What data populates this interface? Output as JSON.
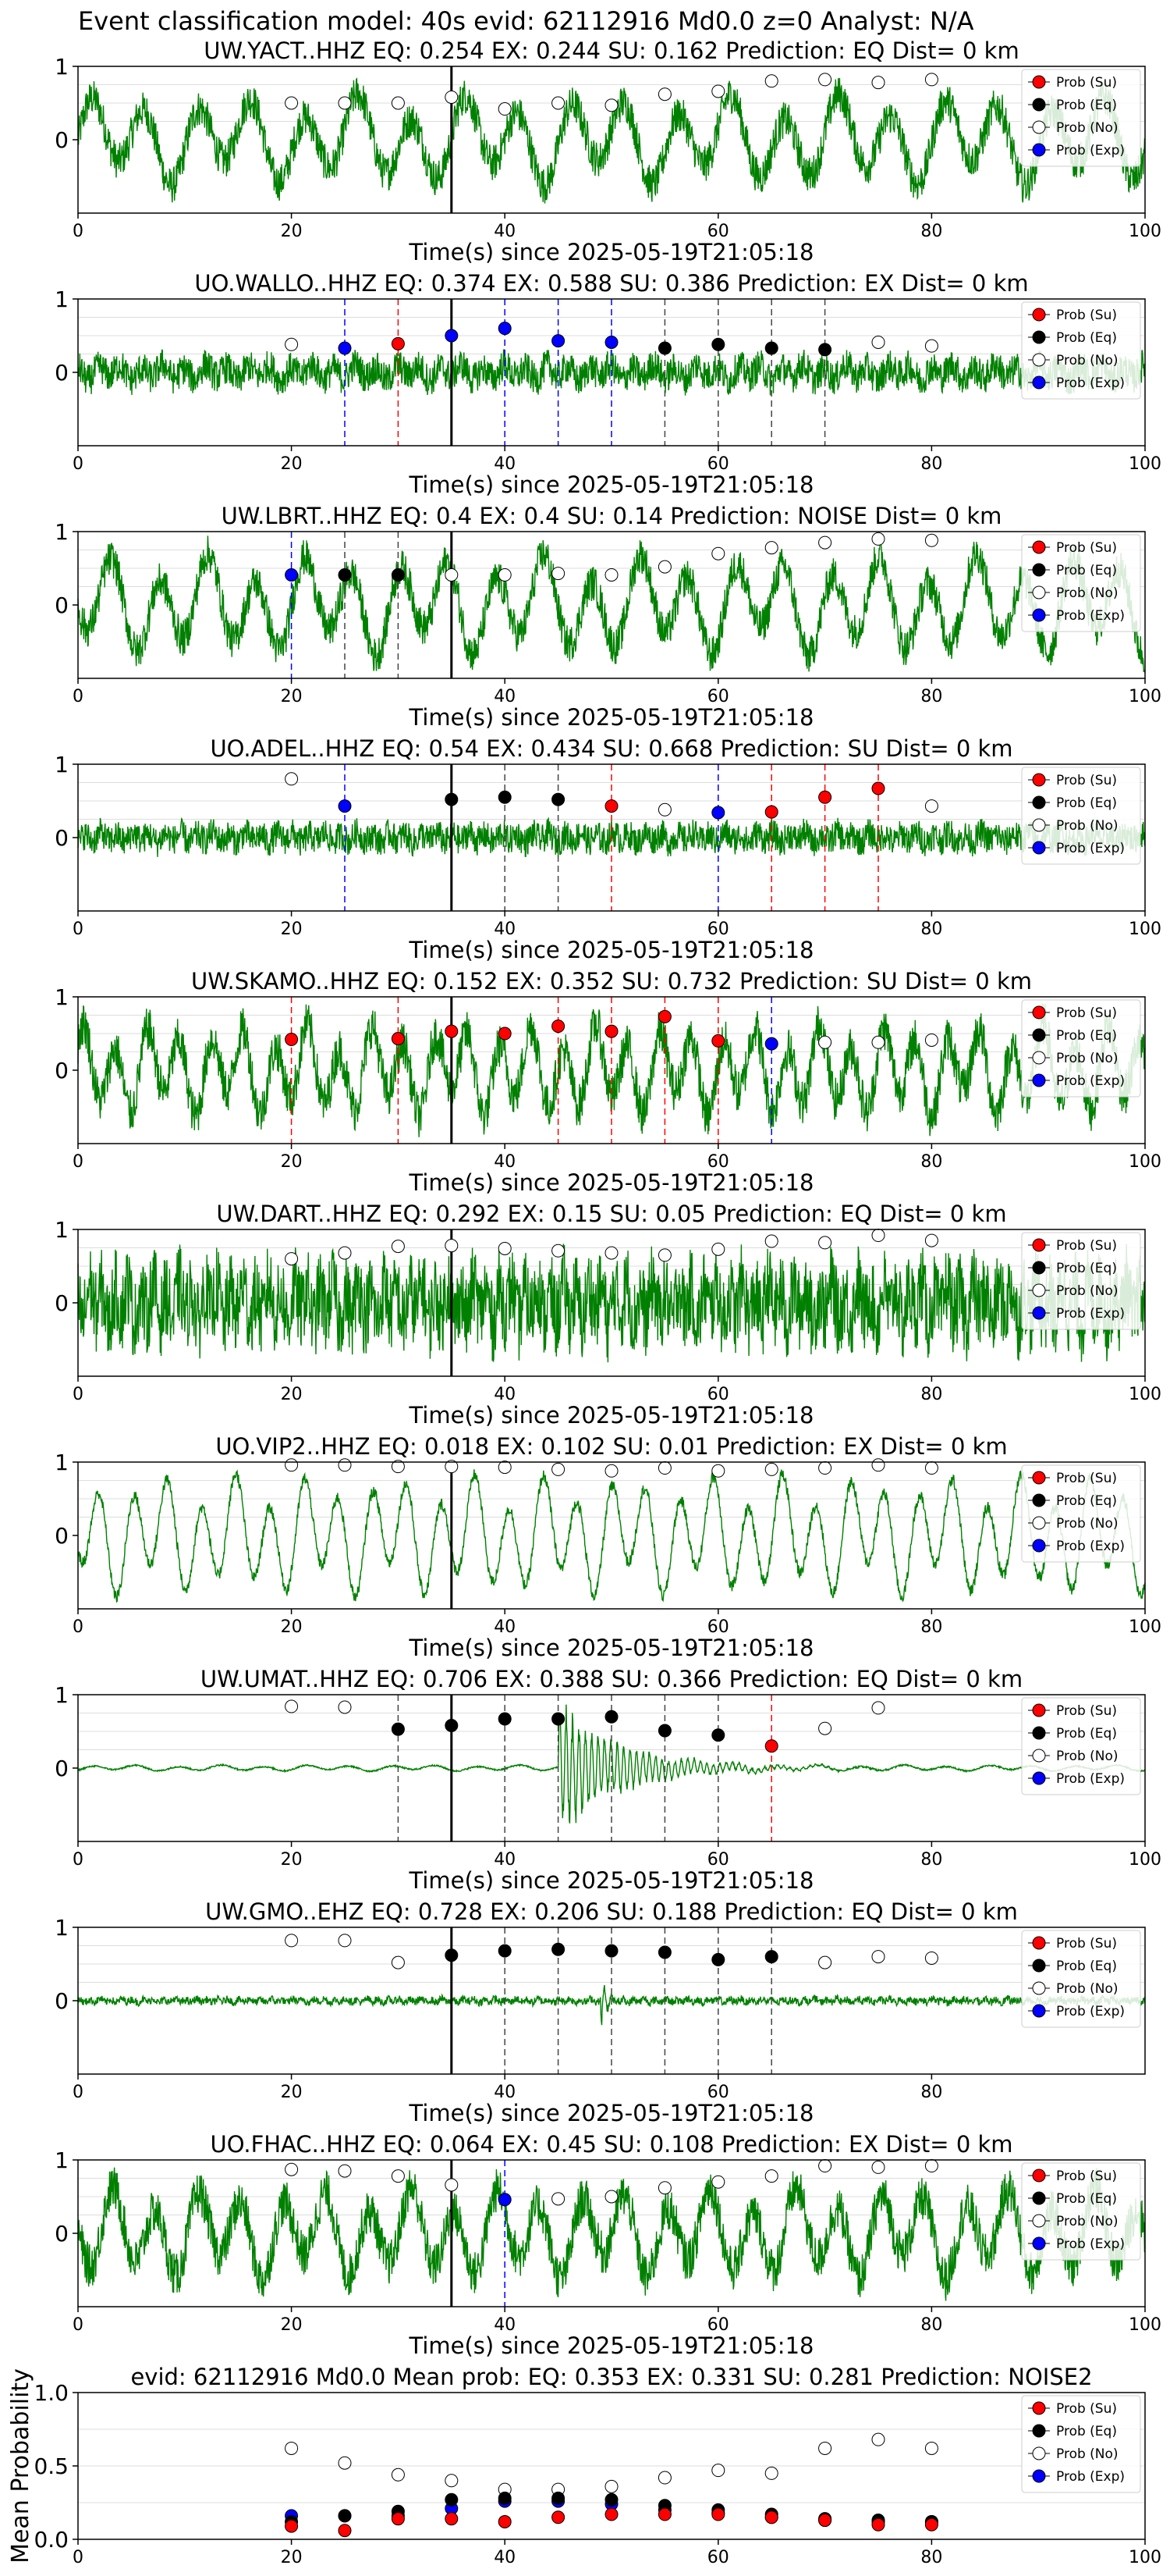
{
  "suptitle": "Event classification model: 40s evid: 62112916 Md0.0 z=0 Analyst: N/A",
  "xlabel": "Time(s) since 2025-05-19T21:05:18",
  "legend": [
    "Prob (Su)",
    "Prob (Eq)",
    "Prob (No)",
    "Prob (Exp)"
  ],
  "colors": {
    "su": "#ff0000",
    "eq": "#000000",
    "no": "#ffffff",
    "exp": "#0000ff",
    "trace": "#008000"
  },
  "chart_data": [
    {
      "type": "line",
      "title": "UW.YACT..HHZ   EQ: 0.254  EX: 0.244  SU: 0.162   Prediction: EQ    Dist= 0 km",
      "xlim": [
        0,
        100
      ],
      "ylim": [
        -1,
        1
      ],
      "yticks": [
        "1",
        "0"
      ],
      "xticks": [
        "0",
        "20",
        "40",
        "60",
        "80",
        "100"
      ],
      "wave": {
        "amp": 0.45,
        "noise": 0.25,
        "period": 5,
        "event": null
      },
      "markers": [
        [
          20,
          0.5,
          "no"
        ],
        [
          25,
          0.5,
          "no"
        ],
        [
          30,
          0.5,
          "no"
        ],
        [
          35,
          0.58,
          "no"
        ],
        [
          40,
          0.42,
          "no"
        ],
        [
          45,
          0.5,
          "no"
        ],
        [
          50,
          0.47,
          "no"
        ],
        [
          55,
          0.62,
          "no"
        ],
        [
          60,
          0.66,
          "no"
        ],
        [
          65,
          0.8,
          "no"
        ],
        [
          70,
          0.82,
          "no"
        ],
        [
          75,
          0.78,
          "no"
        ],
        [
          80,
          0.82,
          "no"
        ]
      ],
      "vlines": []
    },
    {
      "type": "line",
      "title": "UO.WALLO..HHZ   EQ: 0.374  EX: 0.588  SU: 0.386   Prediction: EX    Dist= 0 km",
      "xlim": [
        0,
        100
      ],
      "ylim": [
        -1,
        1
      ],
      "yticks": [
        "1",
        "0"
      ],
      "xticks": [
        "0",
        "20",
        "40",
        "60",
        "80",
        "100"
      ],
      "wave": {
        "amp": 0.08,
        "noise": 0.22,
        "period": 2,
        "event": null
      },
      "markers": [
        [
          20,
          0.38,
          "no"
        ],
        [
          25,
          0.33,
          "exp"
        ],
        [
          30,
          0.39,
          "su"
        ],
        [
          35,
          0.5,
          "exp"
        ],
        [
          40,
          0.6,
          "exp"
        ],
        [
          45,
          0.43,
          "exp"
        ],
        [
          50,
          0.41,
          "exp"
        ],
        [
          55,
          0.33,
          "eq"
        ],
        [
          60,
          0.38,
          "eq"
        ],
        [
          65,
          0.33,
          "eq"
        ],
        [
          70,
          0.31,
          "eq"
        ],
        [
          75,
          0.41,
          "no"
        ],
        [
          80,
          0.36,
          "no"
        ]
      ],
      "vlines": [
        [
          25,
          "exp"
        ],
        [
          30,
          "su"
        ],
        [
          40,
          "exp"
        ],
        [
          45,
          "exp"
        ],
        [
          50,
          "exp"
        ],
        [
          55,
          "eq"
        ],
        [
          60,
          "eq"
        ],
        [
          65,
          "eq"
        ],
        [
          70,
          "eq"
        ]
      ]
    },
    {
      "type": "line",
      "title": "UW.LBRT..HHZ   EQ: 0.4  EX: 0.4  SU: 0.14   Prediction: NOISE    Dist= 0 km",
      "xlim": [
        0,
        100
      ],
      "ylim": [
        -1,
        1
      ],
      "yticks": [
        "1",
        "0"
      ],
      "xticks": [
        "0",
        "20",
        "40",
        "60",
        "80",
        "100"
      ],
      "wave": {
        "amp": 0.5,
        "noise": 0.25,
        "period": 4.5,
        "event": null
      },
      "markers": [
        [
          20,
          0.41,
          "exp"
        ],
        [
          25,
          0.41,
          "eq"
        ],
        [
          30,
          0.41,
          "eq"
        ],
        [
          35,
          0.41,
          "no"
        ],
        [
          40,
          0.41,
          "no"
        ],
        [
          45,
          0.43,
          "no"
        ],
        [
          50,
          0.41,
          "no"
        ],
        [
          55,
          0.52,
          "no"
        ],
        [
          60,
          0.7,
          "no"
        ],
        [
          65,
          0.78,
          "no"
        ],
        [
          70,
          0.85,
          "no"
        ],
        [
          75,
          0.9,
          "no"
        ],
        [
          80,
          0.88,
          "no"
        ]
      ],
      "vlines": [
        [
          20,
          "exp"
        ],
        [
          25,
          "eq"
        ],
        [
          30,
          "eq"
        ]
      ]
    },
    {
      "type": "line",
      "title": "UO.ADEL..HHZ   EQ: 0.54  EX: 0.434  SU: 0.668   Prediction: SU    Dist= 0 km",
      "xlim": [
        0,
        100
      ],
      "ylim": [
        -1,
        1
      ],
      "yticks": [
        "1",
        "0"
      ],
      "xticks": [
        "0",
        "20",
        "40",
        "60",
        "80",
        "100"
      ],
      "wave": {
        "amp": 0.05,
        "noise": 0.2,
        "period": 1.5,
        "event": null
      },
      "markers": [
        [
          20,
          0.8,
          "no"
        ],
        [
          25,
          0.43,
          "exp"
        ],
        [
          35,
          0.52,
          "eq"
        ],
        [
          40,
          0.55,
          "eq"
        ],
        [
          45,
          0.52,
          "eq"
        ],
        [
          50,
          0.43,
          "su"
        ],
        [
          55,
          0.38,
          "no"
        ],
        [
          60,
          0.34,
          "exp"
        ],
        [
          65,
          0.35,
          "su"
        ],
        [
          70,
          0.55,
          "su"
        ],
        [
          75,
          0.67,
          "su"
        ],
        [
          80,
          0.43,
          "no"
        ]
      ],
      "vlines": [
        [
          25,
          "exp"
        ],
        [
          40,
          "eq"
        ],
        [
          45,
          "eq"
        ],
        [
          50,
          "su"
        ],
        [
          60,
          "exp"
        ],
        [
          65,
          "su"
        ],
        [
          70,
          "su"
        ],
        [
          75,
          "su"
        ]
      ]
    },
    {
      "type": "line",
      "title": "UW.SKAMO..HHZ   EQ: 0.152  EX: 0.352  SU: 0.732   Prediction: SU    Dist= 0 km",
      "xlim": [
        0,
        100
      ],
      "ylim": [
        -1,
        1
      ],
      "yticks": [
        "1",
        "0"
      ],
      "xticks": [
        "0",
        "20",
        "40",
        "60",
        "80",
        "100"
      ],
      "wave": {
        "amp": 0.45,
        "noise": 0.3,
        "period": 3,
        "event": null
      },
      "markers": [
        [
          20,
          0.42,
          "su"
        ],
        [
          30,
          0.43,
          "su"
        ],
        [
          35,
          0.53,
          "su"
        ],
        [
          40,
          0.5,
          "su"
        ],
        [
          45,
          0.6,
          "su"
        ],
        [
          50,
          0.53,
          "su"
        ],
        [
          55,
          0.73,
          "su"
        ],
        [
          60,
          0.4,
          "su"
        ],
        [
          65,
          0.36,
          "exp"
        ],
        [
          70,
          0.38,
          "no"
        ],
        [
          75,
          0.38,
          "no"
        ],
        [
          80,
          0.41,
          "no"
        ]
      ],
      "vlines": [
        [
          20,
          "su"
        ],
        [
          30,
          "su"
        ],
        [
          45,
          "su"
        ],
        [
          50,
          "su"
        ],
        [
          55,
          "su"
        ],
        [
          60,
          "su"
        ],
        [
          65,
          "exp"
        ]
      ]
    },
    {
      "type": "line",
      "title": "UW.DART..HHZ   EQ: 0.292  EX: 0.15  SU: 0.05   Prediction: EQ    Dist= 0 km",
      "xlim": [
        0,
        100
      ],
      "ylim": [
        -1,
        1
      ],
      "yticks": [
        "1",
        "0"
      ],
      "xticks": [
        "0",
        "20",
        "40",
        "60",
        "80",
        "100"
      ],
      "wave": {
        "amp": 0.2,
        "noise": 0.55,
        "period": 1.2,
        "event": null
      },
      "markers": [
        [
          20,
          0.6,
          "no"
        ],
        [
          25,
          0.68,
          "no"
        ],
        [
          30,
          0.77,
          "no"
        ],
        [
          35,
          0.78,
          "no"
        ],
        [
          40,
          0.74,
          "no"
        ],
        [
          45,
          0.71,
          "no"
        ],
        [
          50,
          0.68,
          "no"
        ],
        [
          55,
          0.65,
          "no"
        ],
        [
          60,
          0.73,
          "no"
        ],
        [
          65,
          0.84,
          "no"
        ],
        [
          70,
          0.82,
          "no"
        ],
        [
          75,
          0.92,
          "no"
        ],
        [
          80,
          0.85,
          "no"
        ]
      ],
      "vlines": []
    },
    {
      "type": "line",
      "title": "UO.VIP2..HHZ   EQ: 0.018  EX: 0.102  SU: 0.01   Prediction: EX    Dist= 0 km",
      "xlim": [
        0,
        100
      ],
      "ylim": [
        -1,
        1
      ],
      "yticks": [
        "1",
        "0"
      ],
      "xticks": [
        "0",
        "20",
        "40",
        "60",
        "80",
        "100"
      ],
      "wave": {
        "amp": 0.6,
        "noise": 0.08,
        "period": 3.2,
        "event": null
      },
      "markers": [
        [
          20,
          0.96,
          "no"
        ],
        [
          25,
          0.96,
          "no"
        ],
        [
          30,
          0.94,
          "no"
        ],
        [
          35,
          0.94,
          "no"
        ],
        [
          40,
          0.93,
          "no"
        ],
        [
          45,
          0.9,
          "no"
        ],
        [
          50,
          0.88,
          "no"
        ],
        [
          55,
          0.92,
          "no"
        ],
        [
          60,
          0.88,
          "no"
        ],
        [
          65,
          0.9,
          "no"
        ],
        [
          70,
          0.92,
          "no"
        ],
        [
          75,
          0.96,
          "no"
        ],
        [
          80,
          0.92,
          "no"
        ]
      ],
      "vlines": []
    },
    {
      "type": "line",
      "title": "UW.UMAT..HHZ   EQ: 0.706  EX: 0.388  SU: 0.366   Prediction: EQ    Dist= 0 km",
      "xlim": [
        0,
        100
      ],
      "ylim": [
        -1,
        1
      ],
      "yticks": [
        "1",
        "0"
      ],
      "xticks": [
        "0",
        "20",
        "40",
        "60",
        "80",
        "100"
      ],
      "wave": {
        "amp": 0.03,
        "noise": 0.01,
        "period": 4,
        "event": [
          45,
          0.75,
          6
        ]
      },
      "markers": [
        [
          20,
          0.84,
          "no"
        ],
        [
          25,
          0.83,
          "no"
        ],
        [
          30,
          0.53,
          "eq"
        ],
        [
          35,
          0.58,
          "eq"
        ],
        [
          40,
          0.67,
          "eq"
        ],
        [
          45,
          0.67,
          "eq"
        ],
        [
          50,
          0.7,
          "eq"
        ],
        [
          55,
          0.51,
          "eq"
        ],
        [
          60,
          0.45,
          "eq"
        ],
        [
          65,
          0.3,
          "su"
        ],
        [
          70,
          0.54,
          "no"
        ],
        [
          75,
          0.82,
          "no"
        ]
      ],
      "vlines": [
        [
          30,
          "eq"
        ],
        [
          40,
          "eq"
        ],
        [
          45,
          "eq"
        ],
        [
          50,
          "eq"
        ],
        [
          55,
          "eq"
        ],
        [
          60,
          "eq"
        ],
        [
          65,
          "su"
        ]
      ]
    },
    {
      "type": "line",
      "title": "UW.GMO..EHZ   EQ: 0.728  EX: 0.206  SU: 0.188   Prediction: EQ    Dist= 0 km",
      "xlim": [
        0,
        100
      ],
      "ylim": [
        -1,
        1
      ],
      "yticks": [
        "1",
        "0"
      ],
      "xticks": [
        "0",
        "20",
        "40",
        "60",
        "80"
      ],
      "wave": {
        "amp": 0.02,
        "noise": 0.05,
        "period": 1,
        "event": [
          49,
          0.3,
          0.5
        ]
      },
      "markers": [
        [
          20,
          0.82,
          "no"
        ],
        [
          25,
          0.82,
          "no"
        ],
        [
          30,
          0.52,
          "no"
        ],
        [
          35,
          0.62,
          "eq"
        ],
        [
          40,
          0.68,
          "eq"
        ],
        [
          45,
          0.7,
          "eq"
        ],
        [
          50,
          0.68,
          "eq"
        ],
        [
          55,
          0.66,
          "eq"
        ],
        [
          60,
          0.56,
          "eq"
        ],
        [
          65,
          0.6,
          "eq"
        ],
        [
          70,
          0.52,
          "no"
        ],
        [
          75,
          0.6,
          "no"
        ],
        [
          80,
          0.58,
          "no"
        ]
      ],
      "vlines": [
        [
          40,
          "eq"
        ],
        [
          45,
          "eq"
        ],
        [
          50,
          "eq"
        ],
        [
          55,
          "eq"
        ],
        [
          60,
          "eq"
        ],
        [
          65,
          "eq"
        ]
      ]
    },
    {
      "type": "line",
      "title": "UO.FHAC..HHZ   EQ: 0.064  EX: 0.45  SU: 0.108   Prediction: EX    Dist= 0 km",
      "xlim": [
        0,
        100
      ],
      "ylim": [
        -1,
        1
      ],
      "yticks": [
        "1",
        "0"
      ],
      "xticks": [
        "0",
        "20",
        "40",
        "60",
        "80",
        "100"
      ],
      "wave": {
        "amp": 0.45,
        "noise": 0.3,
        "period": 4,
        "event": null
      },
      "markers": [
        [
          20,
          0.87,
          "no"
        ],
        [
          25,
          0.85,
          "no"
        ],
        [
          30,
          0.78,
          "no"
        ],
        [
          35,
          0.66,
          "no"
        ],
        [
          40,
          0.46,
          "exp"
        ],
        [
          45,
          0.47,
          "no"
        ],
        [
          50,
          0.5,
          "no"
        ],
        [
          55,
          0.62,
          "no"
        ],
        [
          60,
          0.7,
          "no"
        ],
        [
          65,
          0.78,
          "no"
        ],
        [
          70,
          0.92,
          "no"
        ],
        [
          75,
          0.9,
          "no"
        ],
        [
          80,
          0.92,
          "no"
        ]
      ],
      "vlines": [
        [
          40,
          "exp"
        ]
      ]
    },
    {
      "type": "scatter",
      "title": "evid: 62112916  Md0.0   Mean prob:   EQ: 0.353  EX: 0.331  SU: 0.281   Prediction: NOISE2",
      "ylabel": "Mean Probability",
      "xlim": [
        0,
        100
      ],
      "ylim": [
        0,
        1
      ],
      "yticks": [
        "1.0",
        "0.5",
        "0.0"
      ],
      "xticks": [
        "0",
        "20",
        "40",
        "60",
        "80",
        "100"
      ],
      "series": [
        {
          "name": "Prob (No)",
          "key": "no",
          "x": [
            20,
            25,
            30,
            35,
            40,
            45,
            50,
            55,
            60,
            65,
            70,
            75,
            80
          ],
          "y": [
            0.62,
            0.52,
            0.44,
            0.4,
            0.34,
            0.34,
            0.36,
            0.42,
            0.47,
            0.45,
            0.62,
            0.68,
            0.62
          ]
        },
        {
          "name": "Prob (Exp)",
          "key": "exp",
          "x": [
            20,
            25,
            30,
            35,
            40,
            45,
            50,
            55,
            60,
            65,
            70,
            75,
            80
          ],
          "y": [
            0.16,
            0.16,
            0.16,
            0.21,
            0.26,
            0.26,
            0.24,
            0.2,
            0.18,
            0.15,
            0.13,
            0.12,
            0.12
          ]
        },
        {
          "name": "Prob (Eq)",
          "key": "eq",
          "x": [
            20,
            25,
            30,
            35,
            40,
            45,
            50,
            55,
            60,
            65,
            70,
            75,
            80
          ],
          "y": [
            0.12,
            0.16,
            0.19,
            0.27,
            0.28,
            0.28,
            0.27,
            0.23,
            0.2,
            0.17,
            0.14,
            0.13,
            0.12
          ]
        },
        {
          "name": "Prob (Su)",
          "key": "su",
          "x": [
            20,
            25,
            30,
            35,
            40,
            45,
            50,
            55,
            60,
            65,
            70,
            75,
            80
          ],
          "y": [
            0.09,
            0.06,
            0.14,
            0.14,
            0.12,
            0.15,
            0.17,
            0.17,
            0.17,
            0.15,
            0.13,
            0.1,
            0.1
          ]
        }
      ]
    }
  ]
}
